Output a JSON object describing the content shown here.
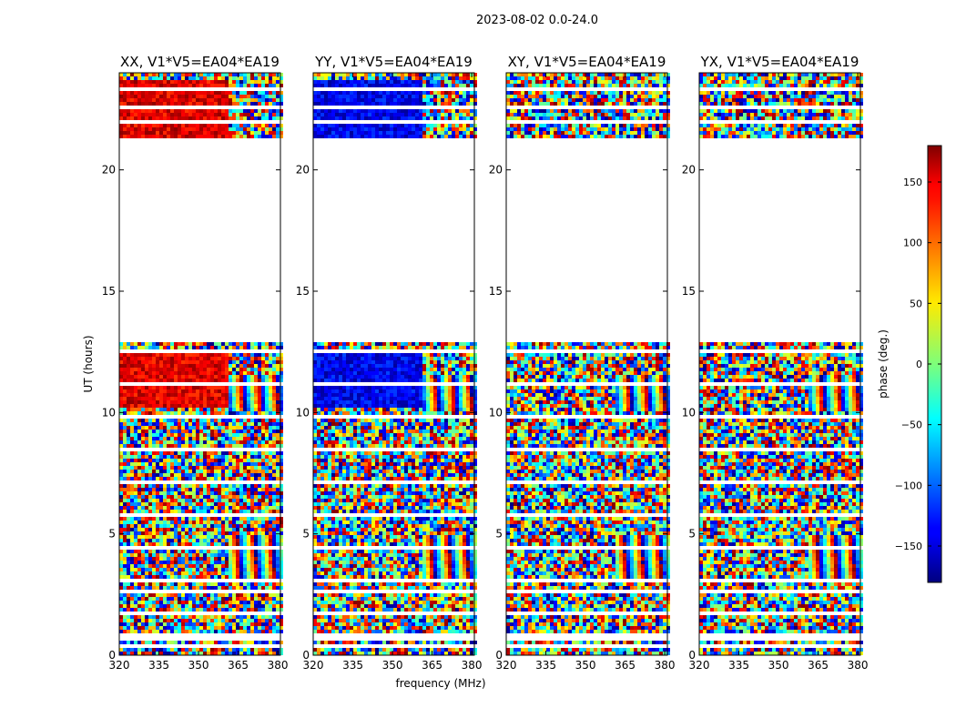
{
  "figure": {
    "suptitle": "2023-08-02 0.0-24.0",
    "xlabel": "frequency (MHz)",
    "ylabel": "UT (hours)"
  },
  "chart_data": [
    {
      "type": "heatmap",
      "title": "XX, V1*V5=EA04*EA19",
      "xlim": [
        320,
        381
      ],
      "xticks": [
        320,
        335,
        350,
        365,
        380
      ],
      "ylim": [
        0,
        24
      ],
      "yticks": [
        0,
        5,
        10,
        15,
        20
      ],
      "blank_ranges_hours": [
        [
          12.9,
          21.3
        ],
        [
          0.65,
          0.9
        ],
        [
          2.55,
          2.75
        ],
        [
          22.5,
          22.7
        ]
      ],
      "bias_phase_deg": 145,
      "bias_ranges_hours": [
        [
          10.2,
          12.4
        ],
        [
          21.3,
          23.7
        ]
      ],
      "bias_freq_max_mhz": 362
    },
    {
      "type": "heatmap",
      "title": "YY, V1*V5=EA04*EA19",
      "xlim": [
        320,
        381
      ],
      "xticks": [
        320,
        335,
        350,
        365,
        380
      ],
      "ylim": [
        0,
        24
      ],
      "yticks": [
        0,
        5,
        10,
        15,
        20
      ],
      "blank_ranges_hours": [
        [
          12.9,
          21.3
        ],
        [
          0.65,
          0.9
        ],
        [
          2.55,
          2.75
        ],
        [
          22.5,
          22.7
        ]
      ],
      "bias_phase_deg": -140,
      "bias_ranges_hours": [
        [
          10.2,
          12.4
        ],
        [
          21.3,
          23.7
        ]
      ],
      "bias_freq_max_mhz": 362
    },
    {
      "type": "heatmap",
      "title": "XY, V1*V5=EA04*EA19",
      "xlim": [
        320,
        381
      ],
      "xticks": [
        320,
        335,
        350,
        365,
        380
      ],
      "ylim": [
        0,
        24
      ],
      "yticks": [
        0,
        5,
        10,
        15,
        20
      ],
      "blank_ranges_hours": [
        [
          12.9,
          21.3
        ],
        [
          0.65,
          0.9
        ],
        [
          2.55,
          2.75
        ],
        [
          22.5,
          22.7
        ]
      ],
      "bias_phase_deg": null,
      "bias_ranges_hours": [],
      "bias_freq_max_mhz": null
    },
    {
      "type": "heatmap",
      "title": "YX, V1*V5=EA04*EA19",
      "xlim": [
        320,
        381
      ],
      "xticks": [
        320,
        335,
        350,
        365,
        380
      ],
      "ylim": [
        0,
        24
      ],
      "yticks": [
        0,
        5,
        10,
        15,
        20
      ],
      "blank_ranges_hours": [
        [
          12.9,
          21.3
        ],
        [
          0.65,
          0.9
        ],
        [
          2.55,
          2.75
        ],
        [
          22.5,
          22.7
        ]
      ],
      "bias_phase_deg": null,
      "bias_ranges_hours": [],
      "bias_freq_max_mhz": null
    }
  ],
  "colorbar": {
    "label": "phase (deg.)",
    "colormap": "jet",
    "range": [
      -180,
      180
    ],
    "ticks": [
      -150,
      -100,
      -50,
      0,
      50,
      100,
      150
    ],
    "tick_labels": [
      "−150",
      "−100",
      "−50",
      "0",
      "50",
      "100",
      "150"
    ]
  }
}
